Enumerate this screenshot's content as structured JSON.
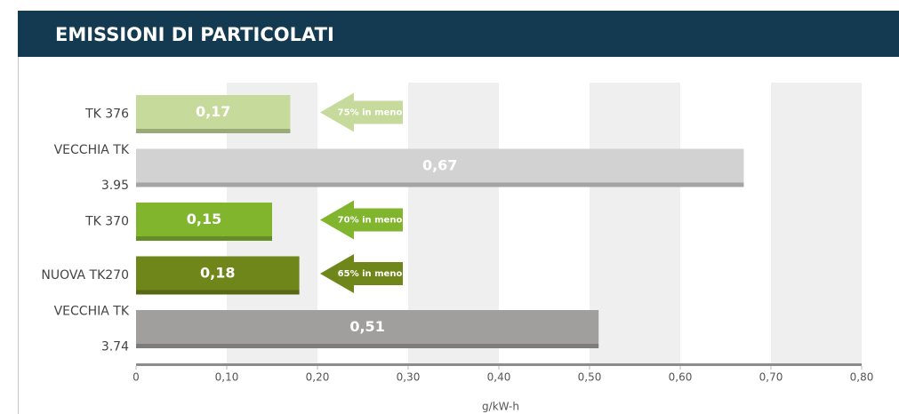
{
  "chart_data": {
    "type": "bar",
    "orientation": "horizontal",
    "title": "EMISSIONI DI PARTICOLATI",
    "xlabel": "g/kW-h",
    "categories": [
      [
        "TK 376"
      ],
      [
        "VECCHIA TK",
        "3.95"
      ],
      [
        "TK 370"
      ],
      [
        "NUOVA TK270"
      ],
      [
        "VECCHIA TK",
        "3.74"
      ]
    ],
    "values": [
      0.17,
      0.67,
      0.15,
      0.18,
      0.51
    ],
    "value_labels": [
      "0,17",
      "0,67",
      "0,15",
      "0,18",
      "0,51"
    ],
    "colors": [
      "#c6da9c",
      "#d2d2d2",
      "#80b52d",
      "#6f861a",
      "#a09f9d"
    ],
    "annotations": [
      "75% in meno",
      null,
      "70% in meno",
      "65% in meno",
      null
    ],
    "xlim": [
      0,
      0.8
    ],
    "xticks": [
      0,
      {
        "value": 0.1,
        "label": "0,10"
      },
      {
        "value": 0.2,
        "label": "0,20"
      },
      {
        "value": 0.3,
        "label": "0,30"
      },
      {
        "value": 0.4,
        "label": "0,40"
      },
      {
        "value": 0.5,
        "label": "0,50"
      },
      {
        "value": 0.6,
        "label": "0,60"
      },
      {
        "value": 0.7,
        "label": "0,70"
      },
      {
        "value": 0.8,
        "label": "0,80"
      }
    ],
    "grid": true
  }
}
